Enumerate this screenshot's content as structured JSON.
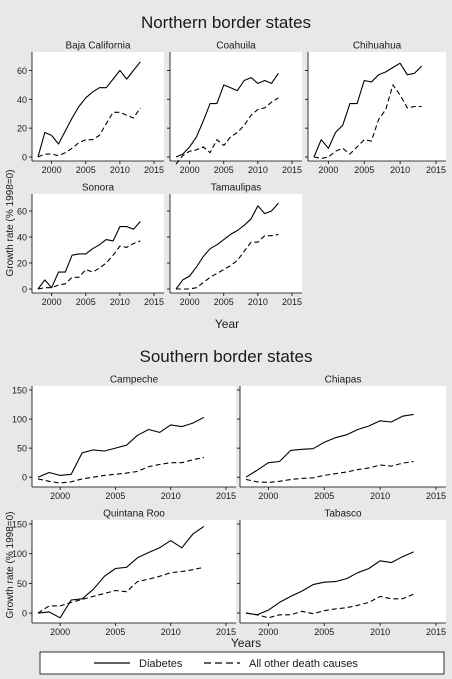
{
  "sections": {
    "north": {
      "title": "Northern border states",
      "ylabel": "Growth rate  (% 1998=0)",
      "xlabel": "Year"
    },
    "south": {
      "title": "Southern border states",
      "ylabel": "Growth rate  (% 1998=0)",
      "xlabel": "Years"
    }
  },
  "legend": {
    "items": [
      {
        "label": "Diabetes",
        "dash": "solid"
      },
      {
        "label": "All other death causes",
        "dash": "dashed"
      }
    ]
  },
  "colors": {
    "background": "#e8e8e8",
    "plot": "#ffffff",
    "line": "#000000"
  },
  "chart_data": [
    {
      "type": "line",
      "title": "Baja California",
      "group": "north",
      "xlim": [
        1998,
        2015
      ],
      "ylim": [
        0,
        70
      ],
      "xticks": [
        2000,
        2005,
        2010,
        2015
      ],
      "yticks": [
        0,
        20,
        40,
        60
      ],
      "x": [
        1998,
        1999,
        2000,
        2001,
        2002,
        2003,
        2004,
        2005,
        2006,
        2007,
        2008,
        2009,
        2010,
        2011,
        2012,
        2013
      ],
      "series": [
        {
          "name": "Diabetes",
          "values": [
            0,
            17,
            15,
            9,
            18,
            27,
            35,
            41,
            45,
            48,
            48,
            54,
            60,
            54,
            60,
            66
          ]
        },
        {
          "name": "All other death causes",
          "values": [
            0,
            2,
            2,
            1,
            3,
            6,
            10,
            12,
            12,
            15,
            23,
            31,
            31,
            29,
            27,
            34
          ]
        }
      ]
    },
    {
      "type": "line",
      "title": "Coahuila",
      "group": "north",
      "xlim": [
        1998,
        2015
      ],
      "ylim": [
        0,
        70
      ],
      "xticks": [
        2000,
        2005,
        2010,
        2015
      ],
      "yticks": [
        0,
        20,
        40,
        60
      ],
      "x": [
        1998,
        1999,
        2000,
        2001,
        2002,
        2003,
        2004,
        2005,
        2006,
        2007,
        2008,
        2009,
        2010,
        2011,
        2012,
        2013
      ],
      "series": [
        {
          "name": "Diabetes",
          "values": [
            0,
            2,
            7,
            14,
            25,
            37,
            37,
            50,
            48,
            46,
            53,
            55,
            51,
            53,
            51,
            58
          ]
        },
        {
          "name": "All other death causes",
          "values": [
            -5,
            1,
            4,
            5,
            7,
            3,
            12,
            8,
            14,
            17,
            22,
            29,
            33,
            34,
            38,
            41
          ]
        }
      ]
    },
    {
      "type": "line",
      "title": "Chihuahua",
      "group": "north",
      "xlim": [
        1998,
        2015
      ],
      "ylim": [
        0,
        70
      ],
      "xticks": [
        2000,
        2005,
        2010,
        2015
      ],
      "yticks": [
        0,
        20,
        40,
        60
      ],
      "x": [
        1998,
        1999,
        2000,
        2001,
        2002,
        2003,
        2004,
        2005,
        2006,
        2007,
        2008,
        2009,
        2010,
        2011,
        2012,
        2013
      ],
      "series": [
        {
          "name": "Diabetes",
          "values": [
            0,
            12,
            6,
            17,
            22,
            37,
            37,
            53,
            52,
            57,
            59,
            62,
            65,
            57,
            58,
            63
          ]
        },
        {
          "name": "All other death causes",
          "values": [
            0,
            -1,
            0,
            4,
            6,
            2,
            7,
            12,
            11,
            26,
            33,
            50,
            43,
            34,
            35,
            35
          ]
        }
      ]
    },
    {
      "type": "line",
      "title": "Sonora",
      "group": "north",
      "xlim": [
        1998,
        2015
      ],
      "ylim": [
        0,
        70
      ],
      "xticks": [
        2000,
        2005,
        2010,
        2015
      ],
      "yticks": [
        0,
        20,
        40,
        60
      ],
      "x": [
        1998,
        1999,
        2000,
        2001,
        2002,
        2003,
        2004,
        2005,
        2006,
        2007,
        2008,
        2009,
        2010,
        2011,
        2012,
        2013
      ],
      "series": [
        {
          "name": "Diabetes",
          "values": [
            0,
            7,
            1,
            13,
            13,
            26,
            27,
            27,
            31,
            34,
            38,
            37,
            48,
            48,
            46,
            52
          ]
        },
        {
          "name": "All other death causes",
          "values": [
            0,
            1,
            1,
            3,
            4,
            9,
            9,
            15,
            13,
            16,
            20,
            26,
            33,
            32,
            35,
            37
          ]
        }
      ]
    },
    {
      "type": "line",
      "title": "Tamaulipas",
      "group": "north",
      "xlim": [
        1998,
        2015
      ],
      "ylim": [
        0,
        70
      ],
      "xticks": [
        2000,
        2005,
        2010,
        2015
      ],
      "yticks": [
        0,
        20,
        40,
        60
      ],
      "x": [
        1998,
        1999,
        2000,
        2001,
        2002,
        2003,
        2004,
        2005,
        2006,
        2007,
        2008,
        2009,
        2010,
        2011,
        2012,
        2013
      ],
      "series": [
        {
          "name": "Diabetes",
          "values": [
            0,
            7,
            10,
            17,
            25,
            31,
            34,
            38,
            42,
            45,
            49,
            54,
            64,
            58,
            60,
            66
          ]
        },
        {
          "name": "All other death causes",
          "values": [
            0,
            0,
            0,
            1,
            5,
            9,
            12,
            15,
            18,
            22,
            29,
            36,
            36,
            41,
            41,
            42
          ]
        }
      ]
    },
    {
      "type": "line",
      "title": "Campeche",
      "group": "south",
      "xlim": [
        1998,
        2015
      ],
      "ylim": [
        -10,
        150
      ],
      "xticks": [
        2000,
        2005,
        2010,
        2015
      ],
      "yticks": [
        0,
        50,
        100,
        150
      ],
      "x": [
        1998,
        1999,
        2000,
        2001,
        2002,
        2003,
        2004,
        2005,
        2006,
        2007,
        2008,
        2009,
        2010,
        2011,
        2012,
        2013
      ],
      "series": [
        {
          "name": "Diabetes",
          "values": [
            0,
            8,
            3,
            5,
            42,
            47,
            45,
            50,
            55,
            72,
            82,
            77,
            90,
            87,
            93,
            103
          ]
        },
        {
          "name": "All other death causes",
          "values": [
            -3,
            -7,
            -10,
            -8,
            -3,
            0,
            3,
            5,
            7,
            10,
            18,
            22,
            25,
            25,
            30,
            34
          ]
        }
      ]
    },
    {
      "type": "line",
      "title": "Chiapas",
      "group": "south",
      "xlim": [
        1998,
        2015
      ],
      "ylim": [
        -10,
        150
      ],
      "xticks": [
        2000,
        2005,
        2010,
        2015
      ],
      "yticks": [
        0,
        50,
        100,
        150
      ],
      "x": [
        1998,
        1999,
        2000,
        2001,
        2002,
        2003,
        2004,
        2005,
        2006,
        2007,
        2008,
        2009,
        2010,
        2011,
        2012,
        2013
      ],
      "series": [
        {
          "name": "Diabetes",
          "values": [
            0,
            12,
            25,
            27,
            46,
            48,
            49,
            60,
            68,
            73,
            82,
            88,
            97,
            95,
            105,
            108
          ]
        },
        {
          "name": "All other death causes",
          "values": [
            -4,
            -8,
            -9,
            -7,
            -4,
            -2,
            -1,
            3,
            6,
            9,
            13,
            16,
            21,
            19,
            24,
            27
          ]
        }
      ]
    },
    {
      "type": "line",
      "title": "Quintana Roo",
      "group": "south",
      "xlim": [
        1998,
        2015
      ],
      "ylim": [
        -10,
        150
      ],
      "xticks": [
        2000,
        2005,
        2010,
        2015
      ],
      "yticks": [
        0,
        50,
        100,
        150
      ],
      "x": [
        1998,
        1999,
        2000,
        2001,
        2002,
        2003,
        2004,
        2005,
        2006,
        2007,
        2008,
        2009,
        2010,
        2011,
        2012,
        2013
      ],
      "series": [
        {
          "name": "Diabetes",
          "values": [
            0,
            2,
            -8,
            22,
            24,
            40,
            62,
            75,
            77,
            93,
            102,
            110,
            122,
            110,
            133,
            146
          ]
        },
        {
          "name": "All other death causes",
          "values": [
            0,
            12,
            12,
            18,
            23,
            28,
            33,
            38,
            36,
            53,
            57,
            62,
            68,
            70,
            73,
            77
          ]
        }
      ]
    },
    {
      "type": "line",
      "title": "Tabasco",
      "group": "south",
      "xlim": [
        1998,
        2015
      ],
      "ylim": [
        -10,
        150
      ],
      "xticks": [
        2000,
        2005,
        2010,
        2015
      ],
      "yticks": [
        0,
        50,
        100,
        150
      ],
      "x": [
        1998,
        1999,
        2000,
        2001,
        2002,
        2003,
        2004,
        2005,
        2006,
        2007,
        2008,
        2009,
        2010,
        2011,
        2012,
        2013
      ],
      "series": [
        {
          "name": "Diabetes",
          "values": [
            0,
            -3,
            5,
            18,
            28,
            37,
            48,
            52,
            53,
            58,
            68,
            75,
            88,
            85,
            95,
            103
          ]
        },
        {
          "name": "All other death causes",
          "values": [
            0,
            -3,
            -8,
            -3,
            -3,
            3,
            -1,
            4,
            7,
            9,
            13,
            18,
            28,
            24,
            24,
            32
          ]
        }
      ]
    }
  ]
}
